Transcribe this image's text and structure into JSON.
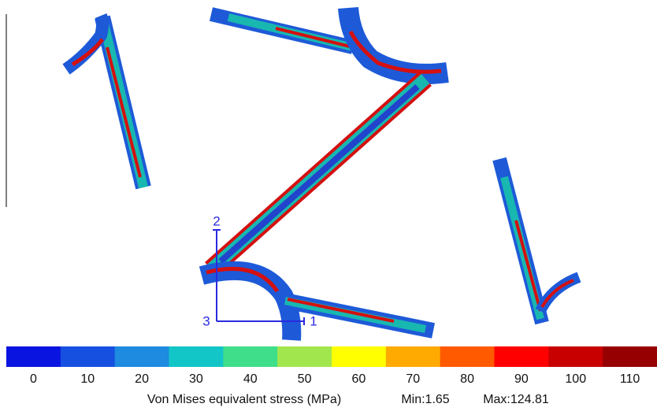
{
  "colorbar": {
    "labels": [
      0,
      10,
      20,
      30,
      40,
      50,
      60,
      70,
      80,
      90,
      100,
      110
    ],
    "colors": [
      "#0a14e0",
      "#1650e0",
      "#1e8ae0",
      "#12c6c8",
      "#3ede8a",
      "#a2e64e",
      "#ffff00",
      "#ffaa00",
      "#ff5a00",
      "#ff0000",
      "#c80000",
      "#960000"
    ]
  },
  "caption": "Von Mises equivalent stress (MPa)",
  "min": "Min:1.65",
  "max": "Max:124.81",
  "triad": {
    "x": "1",
    "y": "2",
    "z": "3"
  }
}
